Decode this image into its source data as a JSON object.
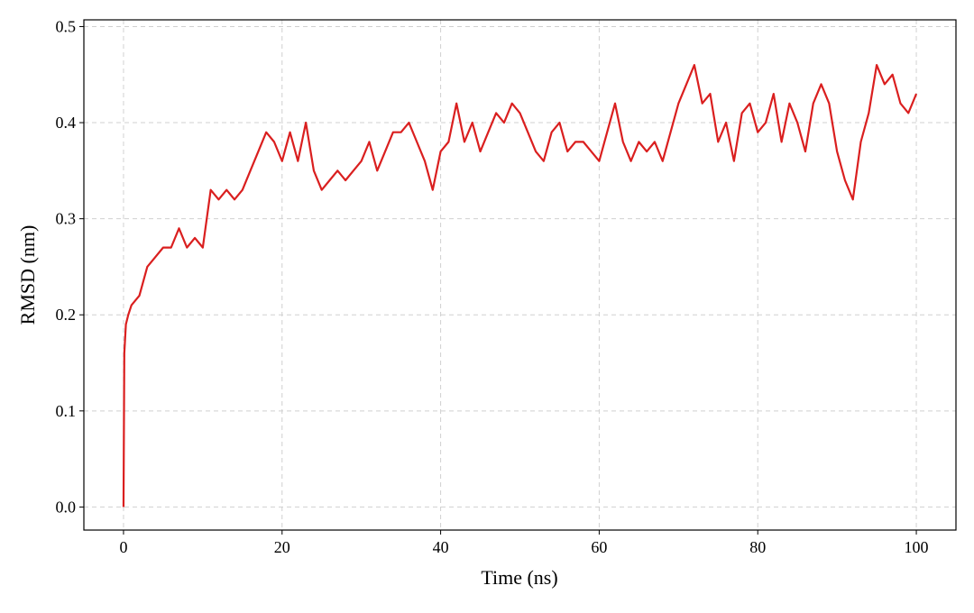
{
  "chart_data": {
    "type": "line",
    "x_label": "Time (ns)",
    "y_label": "RMSD (nm)",
    "xlim": [
      -5,
      105
    ],
    "ylim": [
      -0.024,
      0.507
    ],
    "xticks": [
      0,
      20,
      40,
      60,
      80,
      100
    ],
    "yticks": [
      {
        "value": 0,
        "label": "0.0"
      },
      0.1,
      0.2,
      0.3,
      0.4,
      0.5
    ],
    "grid": true,
    "x": [
      0,
      0.1,
      0.3,
      0.6,
      1,
      2,
      3,
      4,
      5,
      6,
      7,
      8,
      9,
      10,
      11,
      12,
      13,
      14,
      15,
      16,
      17,
      18,
      19,
      20,
      21,
      22,
      23,
      24,
      25,
      26,
      27,
      28,
      29,
      30,
      31,
      32,
      33,
      34,
      35,
      36,
      37,
      38,
      39,
      40,
      41,
      42,
      43,
      44,
      45,
      46,
      47,
      48,
      49,
      50,
      51,
      52,
      53,
      54,
      55,
      56,
      57,
      58,
      59,
      60,
      61,
      62,
      63,
      64,
      65,
      66,
      67,
      68,
      69,
      70,
      71,
      72,
      73,
      74,
      75,
      76,
      77,
      78,
      79,
      80,
      81,
      82,
      83,
      84,
      85,
      86,
      87,
      88,
      89,
      90,
      91,
      92,
      93,
      94,
      95,
      96,
      97,
      98,
      99,
      100
    ],
    "series": [
      {
        "color": "#da1f1f",
        "values": [
          0,
          0.16,
          0.19,
          0.2,
          0.21,
          0.22,
          0.25,
          0.26,
          0.27,
          0.27,
          0.29,
          0.27,
          0.28,
          0.27,
          0.33,
          0.32,
          0.33,
          0.32,
          0.33,
          0.35,
          0.37,
          0.39,
          0.38,
          0.36,
          0.39,
          0.36,
          0.4,
          0.35,
          0.33,
          0.34,
          0.35,
          0.34,
          0.35,
          0.36,
          0.38,
          0.35,
          0.37,
          0.39,
          0.39,
          0.4,
          0.38,
          0.36,
          0.33,
          0.37,
          0.38,
          0.42,
          0.38,
          0.4,
          0.37,
          0.39,
          0.41,
          0.4,
          0.42,
          0.41,
          0.39,
          0.37,
          0.36,
          0.39,
          0.4,
          0.37,
          0.38,
          0.38,
          0.37,
          0.36,
          0.39,
          0.42,
          0.38,
          0.36,
          0.38,
          0.37,
          0.38,
          0.36,
          0.39,
          0.42,
          0.44,
          0.46,
          0.42,
          0.43,
          0.38,
          0.4,
          0.36,
          0.41,
          0.42,
          0.39,
          0.4,
          0.43,
          0.38,
          0.42,
          0.4,
          0.37,
          0.42,
          0.44,
          0.42,
          0.37,
          0.34,
          0.32,
          0.38,
          0.41,
          0.46,
          0.44,
          0.45,
          0.42,
          0.41,
          0.43
        ]
      }
    ]
  }
}
